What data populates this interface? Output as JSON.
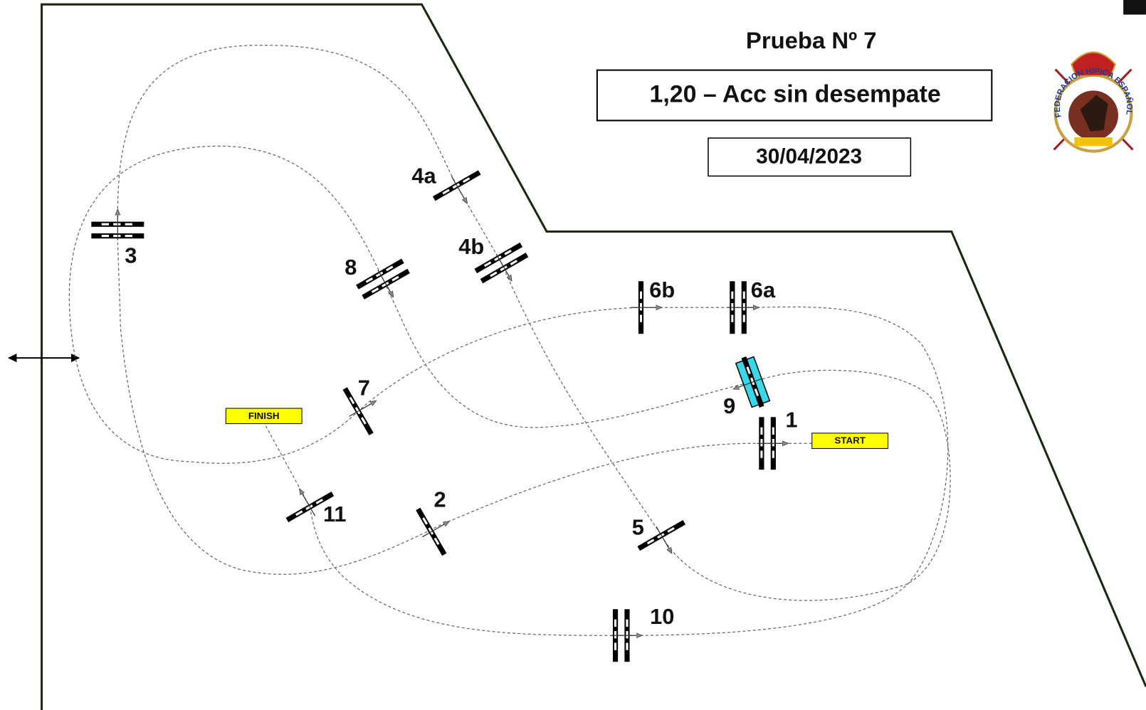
{
  "header": {
    "title": "Prueba Nº 7",
    "subtitle": "1,20 – Acc sin desempate",
    "date": "30/04/2023"
  },
  "logo": {
    "text": "FEDERACION HIPICA ESPAÑOLA"
  },
  "markers": {
    "start": "START",
    "finish": "FINISH"
  },
  "obstacles": [
    {
      "label": "1"
    },
    {
      "label": "2"
    },
    {
      "label": "3"
    },
    {
      "label": "4a"
    },
    {
      "label": "4b"
    },
    {
      "label": "5"
    },
    {
      "label": "6a"
    },
    {
      "label": "6b"
    },
    {
      "label": "7"
    },
    {
      "label": "8"
    },
    {
      "label": "9"
    },
    {
      "label": "10"
    },
    {
      "label": "11"
    }
  ]
}
